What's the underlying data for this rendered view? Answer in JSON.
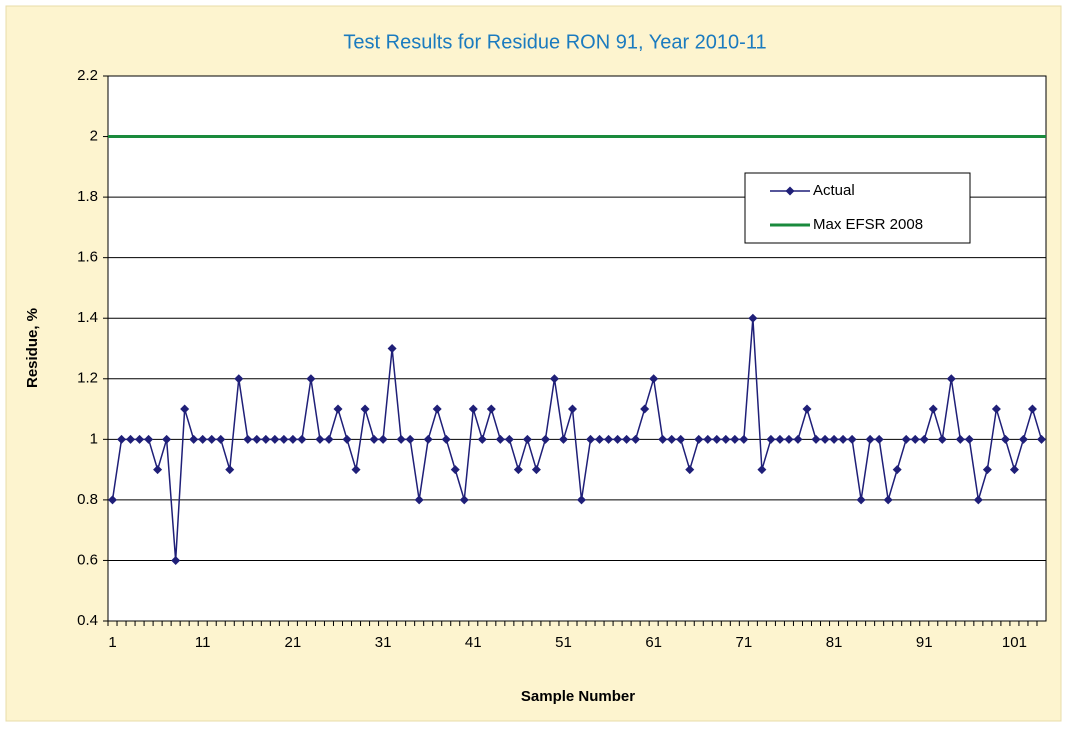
{
  "chart_data": {
    "type": "line",
    "title": "Test Results for Residue RON 91, Year 2010-11",
    "x_label": "Sample Number",
    "y_label": "Residue, %",
    "categories": [
      1,
      null,
      null,
      null,
      null,
      null,
      null,
      null,
      null,
      null,
      11,
      null,
      null,
      null,
      null,
      null,
      null,
      null,
      null,
      null,
      21,
      null,
      null,
      null,
      null,
      null,
      null,
      null,
      null,
      null,
      31,
      null,
      null,
      null,
      null,
      null,
      null,
      null,
      null,
      null,
      41,
      null,
      null,
      null,
      null,
      null,
      null,
      null,
      null,
      null,
      51,
      null,
      null,
      null,
      null,
      null,
      null,
      null,
      null,
      null,
      61,
      null,
      null,
      null,
      null,
      null,
      null,
      null,
      null,
      null,
      71,
      null,
      null,
      null,
      null,
      null,
      null,
      null,
      null,
      null,
      81,
      null,
      null,
      null,
      null,
      null,
      null,
      null,
      null,
      null,
      91,
      null,
      null,
      null,
      null,
      null,
      null,
      null,
      null,
      null,
      101,
      null,
      null,
      null
    ],
    "series": [
      {
        "name": "Actual",
        "color": "#1f1f78",
        "marker": "diamond",
        "values": [
          0.8,
          1,
          1,
          1,
          1,
          0.9,
          1,
          0.6,
          1.1,
          1,
          1,
          1,
          1,
          0.9,
          1.2,
          1,
          1,
          1,
          1,
          1,
          1,
          1,
          1.2,
          1,
          1,
          1.1,
          1,
          0.9,
          1.1,
          1,
          1,
          1.3,
          1,
          1,
          0.8,
          1,
          1.1,
          1,
          0.9,
          0.8,
          1.1,
          1,
          1.1,
          1,
          1,
          0.9,
          1,
          0.9,
          1,
          1.2,
          1,
          1.1,
          0.8,
          1,
          1,
          1,
          1,
          1,
          1,
          1.1,
          1.2,
          1,
          1,
          1,
          0.9,
          1,
          1,
          1,
          1,
          1,
          1,
          1.4,
          0.9,
          1,
          1,
          1,
          1,
          1.1,
          1,
          1,
          1,
          1,
          1,
          0.8,
          1,
          1,
          0.8,
          0.9,
          1,
          1,
          1,
          1.1,
          1,
          1.2,
          1,
          1,
          0.8,
          0.9,
          1.1,
          1,
          0.9,
          1,
          1.1,
          1
        ]
      },
      {
        "name": "Max EFSR 2008",
        "color": "#1a8a3c",
        "marker": "none",
        "values": [
          2,
          2,
          2,
          2,
          2,
          2,
          2,
          2,
          2,
          2,
          2,
          2,
          2,
          2,
          2,
          2,
          2,
          2,
          2,
          2,
          2,
          2,
          2,
          2,
          2,
          2,
          2,
          2,
          2,
          2,
          2,
          2,
          2,
          2,
          2,
          2,
          2,
          2,
          2,
          2,
          2,
          2,
          2,
          2,
          2,
          2,
          2,
          2,
          2,
          2,
          2,
          2,
          2,
          2,
          2,
          2,
          2,
          2,
          2,
          2,
          2,
          2,
          2,
          2,
          2,
          2,
          2,
          2,
          2,
          2,
          2,
          2,
          2,
          2,
          2,
          2,
          2,
          2,
          2,
          2,
          2,
          2,
          2,
          2,
          2,
          2,
          2,
          2,
          2,
          2,
          2,
          2,
          2,
          2,
          2,
          2,
          2,
          2,
          2,
          2,
          2,
          2,
          2,
          2
        ]
      }
    ],
    "ylim": [
      0.4,
      2.2
    ],
    "yticks": [
      0.4,
      0.6,
      0.8,
      1,
      1.2,
      1.4,
      1.6,
      1.8,
      2,
      2.2
    ],
    "grid": true,
    "legend": "upper right"
  }
}
